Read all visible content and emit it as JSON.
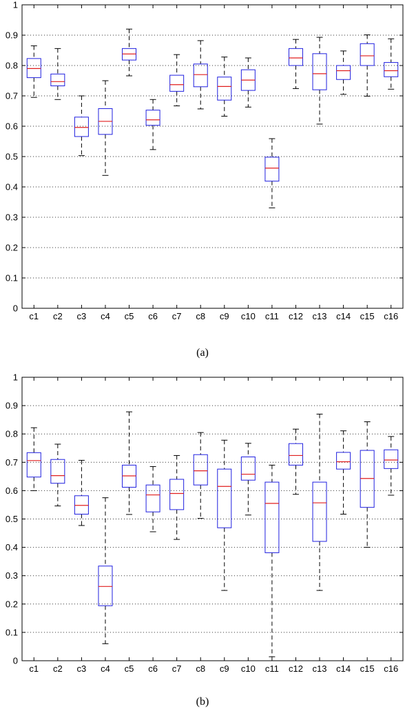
{
  "chart_data": [
    {
      "type": "box",
      "caption": "(a)",
      "ylim": [
        0,
        1
      ],
      "y_ticks": [
        "0",
        "0.1",
        "0.2",
        "0.3",
        "0.4",
        "0.5",
        "0.6",
        "0.7",
        "0.8",
        "0.9",
        "1"
      ],
      "grid": "horizontal dotted",
      "categories": [
        "c1",
        "c2",
        "c3",
        "c4",
        "c5",
        "c6",
        "c7",
        "c8",
        "c9",
        "c10",
        "c11",
        "c12",
        "c13",
        "c14",
        "c15",
        "c16"
      ],
      "boxes": [
        {
          "min": 0.695,
          "q1": 0.76,
          "median": 0.79,
          "q3": 0.823,
          "max": 0.865
        },
        {
          "min": 0.688,
          "q1": 0.733,
          "median": 0.747,
          "q3": 0.772,
          "max": 0.856
        },
        {
          "min": 0.503,
          "q1": 0.566,
          "median": 0.596,
          "q3": 0.63,
          "max": 0.7
        },
        {
          "min": 0.438,
          "q1": 0.573,
          "median": 0.616,
          "q3": 0.658,
          "max": 0.75
        },
        {
          "min": 0.766,
          "q1": 0.818,
          "median": 0.838,
          "q3": 0.856,
          "max": 0.92
        },
        {
          "min": 0.523,
          "q1": 0.603,
          "median": 0.621,
          "q3": 0.653,
          "max": 0.688
        },
        {
          "min": 0.667,
          "q1": 0.715,
          "median": 0.737,
          "q3": 0.768,
          "max": 0.836
        },
        {
          "min": 0.657,
          "q1": 0.73,
          "median": 0.77,
          "q3": 0.805,
          "max": 0.882
        },
        {
          "min": 0.633,
          "q1": 0.686,
          "median": 0.731,
          "q3": 0.762,
          "max": 0.828
        },
        {
          "min": 0.663,
          "q1": 0.718,
          "median": 0.752,
          "q3": 0.786,
          "max": 0.825
        },
        {
          "min": 0.331,
          "q1": 0.419,
          "median": 0.462,
          "q3": 0.498,
          "max": 0.559
        },
        {
          "min": 0.724,
          "q1": 0.8,
          "median": 0.825,
          "q3": 0.856,
          "max": 0.886
        },
        {
          "min": 0.607,
          "q1": 0.72,
          "median": 0.773,
          "q3": 0.839,
          "max": 0.893
        },
        {
          "min": 0.705,
          "q1": 0.754,
          "median": 0.783,
          "q3": 0.8,
          "max": 0.848
        },
        {
          "min": 0.699,
          "q1": 0.8,
          "median": 0.832,
          "q3": 0.872,
          "max": 0.901
        },
        {
          "min": 0.722,
          "q1": 0.763,
          "median": 0.783,
          "q3": 0.81,
          "max": 0.888
        }
      ]
    },
    {
      "type": "box",
      "caption": "(b)",
      "ylim": [
        0,
        1
      ],
      "y_ticks": [
        "0",
        "0.1",
        "0.2",
        "0.3",
        "0.4",
        "0.5",
        "0.6",
        "0.7",
        "0.8",
        "0.9",
        "1"
      ],
      "grid": "horizontal dotted",
      "categories": [
        "c1",
        "c2",
        "c3",
        "c4",
        "c5",
        "c6",
        "c7",
        "c8",
        "c9",
        "c10",
        "c11",
        "c12",
        "c13",
        "c14",
        "c15",
        "c16"
      ],
      "boxes": [
        {
          "min": 0.6,
          "q1": 0.648,
          "median": 0.706,
          "q3": 0.734,
          "max": 0.822
        },
        {
          "min": 0.546,
          "q1": 0.626,
          "median": 0.653,
          "q3": 0.71,
          "max": 0.764
        },
        {
          "min": 0.477,
          "q1": 0.517,
          "median": 0.548,
          "q3": 0.582,
          "max": 0.707
        },
        {
          "min": 0.06,
          "q1": 0.194,
          "median": 0.262,
          "q3": 0.334,
          "max": 0.575
        },
        {
          "min": 0.516,
          "q1": 0.612,
          "median": 0.652,
          "q3": 0.69,
          "max": 0.878
        },
        {
          "min": 0.455,
          "q1": 0.525,
          "median": 0.585,
          "q3": 0.62,
          "max": 0.685
        },
        {
          "min": 0.428,
          "q1": 0.533,
          "median": 0.59,
          "q3": 0.64,
          "max": 0.724
        },
        {
          "min": 0.502,
          "q1": 0.62,
          "median": 0.67,
          "q3": 0.727,
          "max": 0.805
        },
        {
          "min": 0.248,
          "q1": 0.469,
          "median": 0.615,
          "q3": 0.676,
          "max": 0.778
        },
        {
          "min": 0.514,
          "q1": 0.637,
          "median": 0.658,
          "q3": 0.719,
          "max": 0.767
        },
        {
          "min": 0.014,
          "q1": 0.381,
          "median": 0.555,
          "q3": 0.63,
          "max": 0.69
        },
        {
          "min": 0.587,
          "q1": 0.69,
          "median": 0.724,
          "q3": 0.766,
          "max": 0.817
        },
        {
          "min": 0.248,
          "q1": 0.421,
          "median": 0.557,
          "q3": 0.63,
          "max": 0.87
        },
        {
          "min": 0.517,
          "q1": 0.676,
          "median": 0.702,
          "q3": 0.735,
          "max": 0.811
        },
        {
          "min": 0.4,
          "q1": 0.541,
          "median": 0.643,
          "q3": 0.742,
          "max": 0.843
        },
        {
          "min": 0.584,
          "q1": 0.678,
          "median": 0.708,
          "q3": 0.744,
          "max": 0.791
        }
      ]
    }
  ],
  "colors": {
    "box": "#1f1fe0",
    "median": "#e01f1f",
    "whisker": "#000000",
    "grid": "#000000",
    "axis": "#000000"
  }
}
